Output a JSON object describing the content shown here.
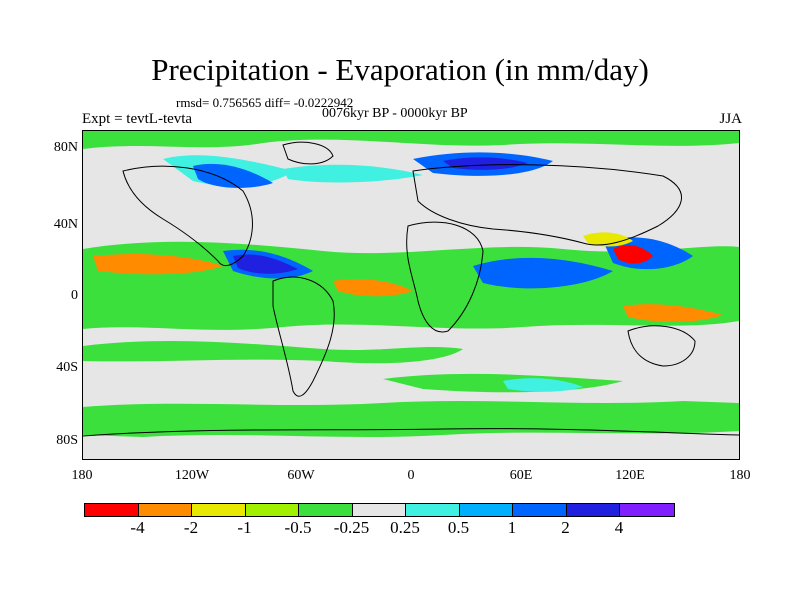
{
  "title": "Precipitation - Evaporation (in mm/day)",
  "stats": "rmsd= 0.756565  diff= -0.0222942",
  "period": "0076kyr BP - 0000kyr BP",
  "experiment": "Expt = tevtL-tevta",
  "season": "JJA",
  "latitude_labels": [
    "80N",
    "40N",
    "0",
    "40S",
    "80S"
  ],
  "longitude_labels": [
    "180",
    "120W",
    "60W",
    "0",
    "60E",
    "120E",
    "180"
  ],
  "colorbar": {
    "colors": [
      "#ff0000",
      "#ff8c00",
      "#e8e800",
      "#a0f000",
      "#3ce03c",
      "#e6e6e6",
      "#40f0e0",
      "#00b0ff",
      "#0064ff",
      "#2020e0",
      "#8020ff"
    ],
    "labels": [
      "-4",
      "-2",
      "-1",
      "-0.5",
      "-0.25",
      "0.25",
      "0.5",
      "1",
      "2",
      "4"
    ]
  }
}
